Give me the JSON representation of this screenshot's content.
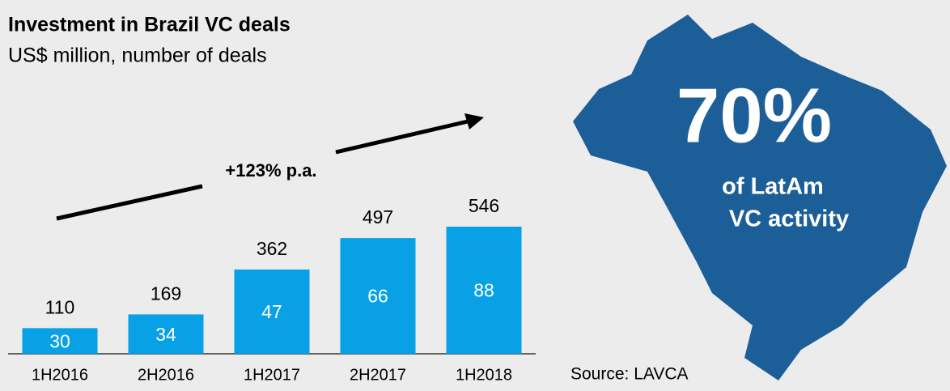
{
  "chart_data": {
    "type": "bar",
    "title": "Investment in Brazil VC deals",
    "subtitle": "US$ million, number of deals",
    "categories": [
      "1H2016",
      "2H2016",
      "1H2017",
      "2H2017",
      "1H2018"
    ],
    "values": [
      110,
      169,
      362,
      497,
      546
    ],
    "deals": [
      30,
      34,
      47,
      66,
      88
    ],
    "color": "#09a1e6",
    "annotations": {
      "growth": "+123% p.a.",
      "share": "70%",
      "share_line1": "of LatAm",
      "share_line2": "VC activity",
      "source": "Source: LAVCA"
    }
  }
}
